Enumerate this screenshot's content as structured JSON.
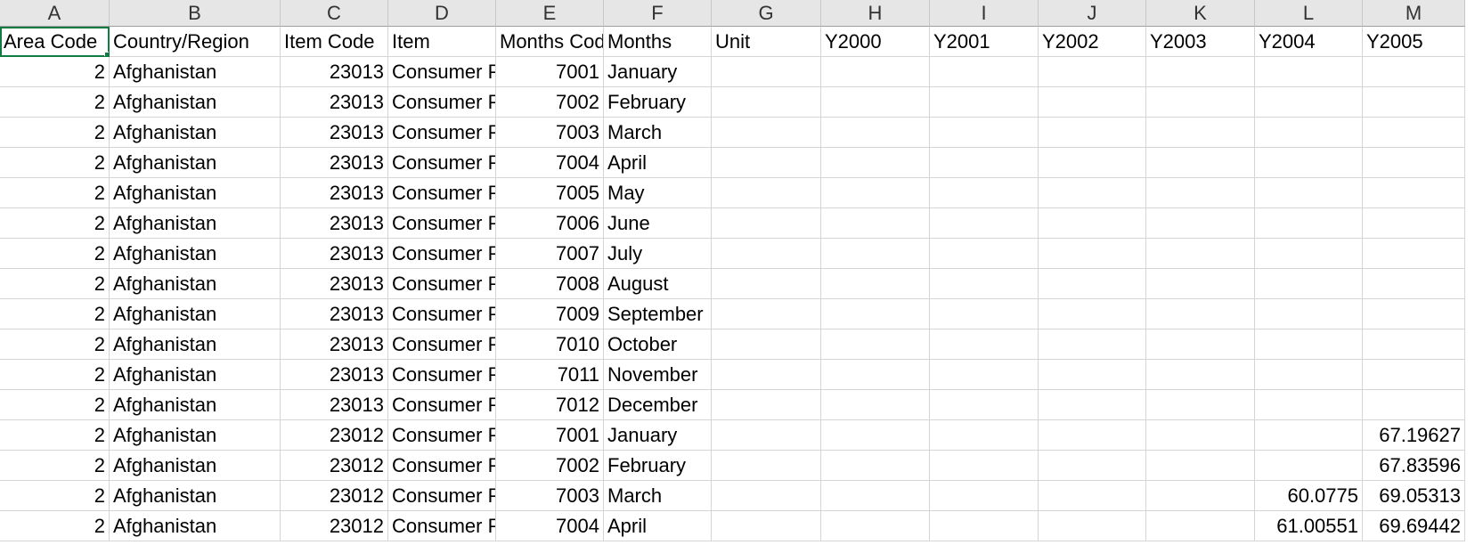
{
  "columns": [
    "A",
    "B",
    "C",
    "D",
    "E",
    "F",
    "G",
    "H",
    "I",
    "J",
    "K",
    "L",
    "M"
  ],
  "header_row": [
    "Area Code",
    "Country/Region",
    "Item Code",
    "Item",
    "Months Code",
    "Months",
    "Unit",
    "Y2000",
    "Y2001",
    "Y2002",
    "Y2003",
    "Y2004",
    "Y2005"
  ],
  "rows": [
    [
      "2",
      "Afghanistan",
      "23013",
      "Consumer Prices, General Indices",
      "7001",
      "January",
      "",
      "",
      "",
      "",
      "",
      "",
      ""
    ],
    [
      "2",
      "Afghanistan",
      "23013",
      "Consumer Prices, General Indices",
      "7002",
      "February",
      "",
      "",
      "",
      "",
      "",
      "",
      ""
    ],
    [
      "2",
      "Afghanistan",
      "23013",
      "Consumer Prices, General Indices",
      "7003",
      "March",
      "",
      "",
      "",
      "",
      "",
      "",
      ""
    ],
    [
      "2",
      "Afghanistan",
      "23013",
      "Consumer Prices, General Indices",
      "7004",
      "April",
      "",
      "",
      "",
      "",
      "",
      "",
      ""
    ],
    [
      "2",
      "Afghanistan",
      "23013",
      "Consumer Prices, General Indices",
      "7005",
      "May",
      "",
      "",
      "",
      "",
      "",
      "",
      ""
    ],
    [
      "2",
      "Afghanistan",
      "23013",
      "Consumer Prices, General Indices",
      "7006",
      "June",
      "",
      "",
      "",
      "",
      "",
      "",
      ""
    ],
    [
      "2",
      "Afghanistan",
      "23013",
      "Consumer Prices, General Indices",
      "7007",
      "July",
      "",
      "",
      "",
      "",
      "",
      "",
      ""
    ],
    [
      "2",
      "Afghanistan",
      "23013",
      "Consumer Prices, General Indices",
      "7008",
      "August",
      "",
      "",
      "",
      "",
      "",
      "",
      ""
    ],
    [
      "2",
      "Afghanistan",
      "23013",
      "Consumer Prices, General Indices",
      "7009",
      "September",
      "",
      "",
      "",
      "",
      "",
      "",
      ""
    ],
    [
      "2",
      "Afghanistan",
      "23013",
      "Consumer Prices, General Indices",
      "7010",
      "October",
      "",
      "",
      "",
      "",
      "",
      "",
      ""
    ],
    [
      "2",
      "Afghanistan",
      "23013",
      "Consumer Prices, General Indices",
      "7011",
      "November",
      "",
      "",
      "",
      "",
      "",
      "",
      ""
    ],
    [
      "2",
      "Afghanistan",
      "23013",
      "Consumer Prices, General Indices",
      "7012",
      "December",
      "",
      "",
      "",
      "",
      "",
      "",
      ""
    ],
    [
      "2",
      "Afghanistan",
      "23012",
      "Consumer Prices, General Indices",
      "7001",
      "January",
      "",
      "",
      "",
      "",
      "",
      "",
      "67.19627"
    ],
    [
      "2",
      "Afghanistan",
      "23012",
      "Consumer Prices, General Indices",
      "7002",
      "February",
      "",
      "",
      "",
      "",
      "",
      "",
      "67.83596"
    ],
    [
      "2",
      "Afghanistan",
      "23012",
      "Consumer Prices, General Indices",
      "7003",
      "March",
      "",
      "",
      "",
      "",
      "",
      "60.0775",
      "69.05313"
    ],
    [
      "2",
      "Afghanistan",
      "23012",
      "Consumer Prices, General Indices",
      "7004",
      "April",
      "",
      "",
      "",
      "",
      "",
      "61.00551",
      "69.69442"
    ]
  ],
  "numeric_columns": [
    0,
    2,
    4,
    11,
    12
  ],
  "selected_cell": "A1",
  "colors": {
    "selection": "#107c41",
    "header_bg": "#e6e6e6",
    "gridline": "#d4d4d4"
  }
}
